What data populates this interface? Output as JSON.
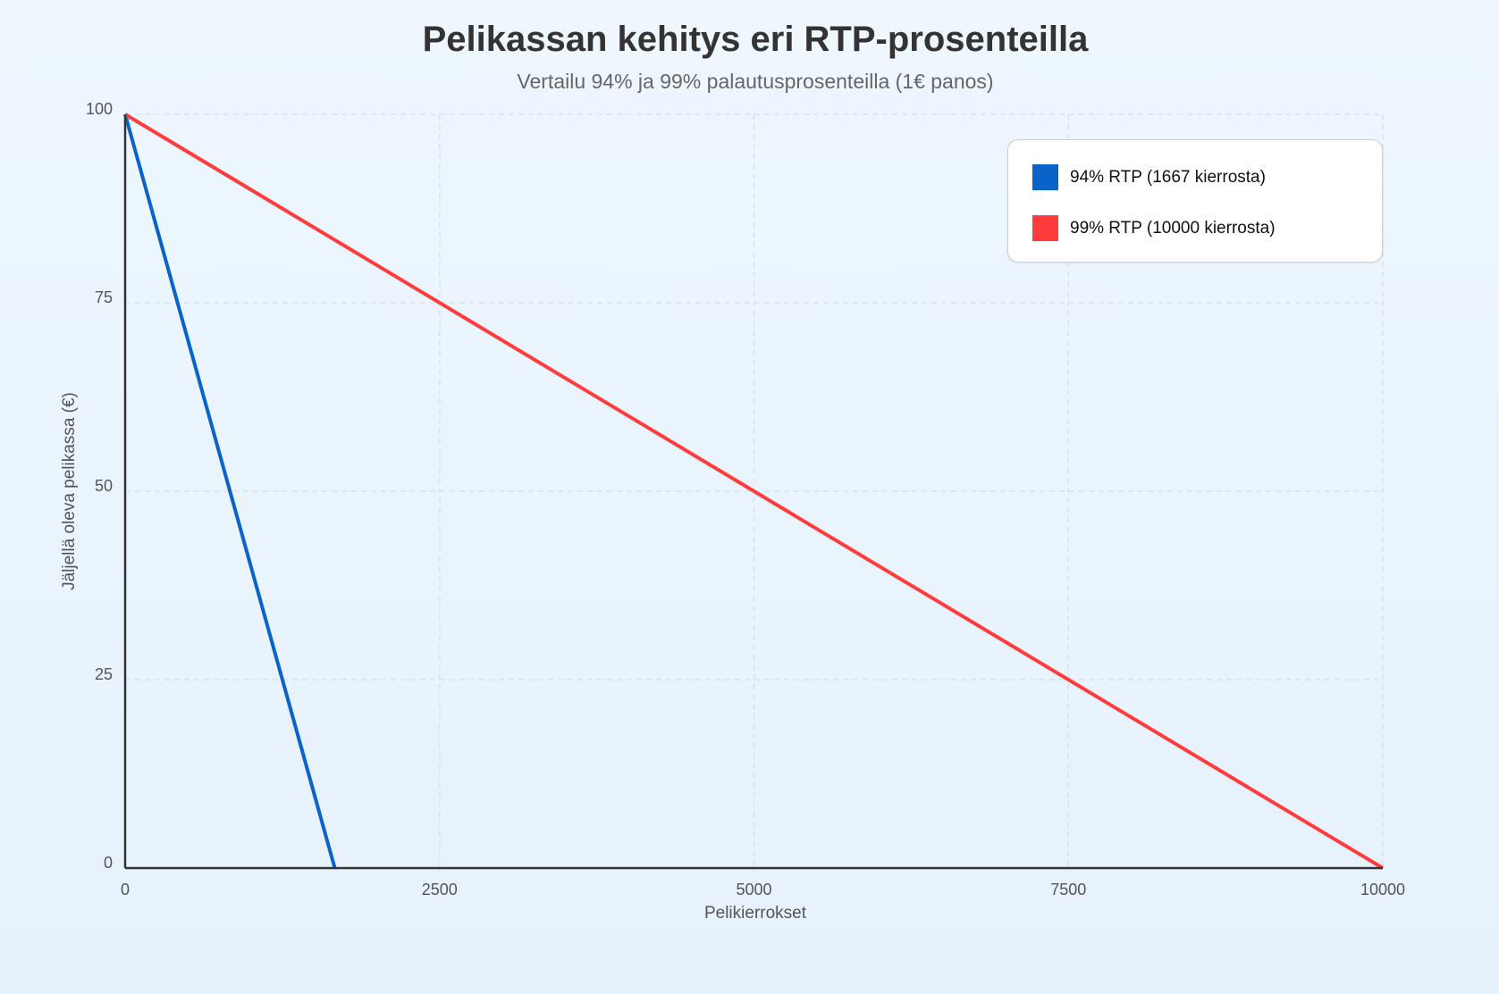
{
  "title": "Pelikassan kehitys eri RTP-prosenteilla",
  "subtitle": "Vertailu 94% ja 99% palautusprosenteilla (1€ panos)",
  "legend": {
    "items": [
      {
        "label": "94% RTP (1667 kierrosta)",
        "color": "#0a63c8"
      },
      {
        "label": "99% RTP (10000 kierrosta)",
        "color": "#ff3b3b"
      }
    ]
  },
  "chart_data": {
    "type": "line",
    "title": "Pelikassan kehitys eri RTP-prosenteilla",
    "subtitle": "Vertailu 94% ja 99% palautusprosenteilla (1€ panos)",
    "xlabel": "Pelikierrokset",
    "ylabel": "Jäljellä oleva pelikassa (€)",
    "xlim": [
      0,
      10000
    ],
    "ylim": [
      0,
      100
    ],
    "xticks": [
      0,
      2500,
      5000,
      7500,
      10000
    ],
    "yticks": [
      0,
      25,
      50,
      75,
      100
    ],
    "grid": true,
    "legend_position": "top-right",
    "series": [
      {
        "name": "94% RTP (1667 kierrosta)",
        "color": "#0a63c8",
        "x": [
          0,
          1667
        ],
        "y": [
          100,
          0
        ]
      },
      {
        "name": "99% RTP (10000 kierrosta)",
        "color": "#ff3b3b",
        "x": [
          0,
          10000
        ],
        "y": [
          100,
          0
        ]
      }
    ]
  }
}
